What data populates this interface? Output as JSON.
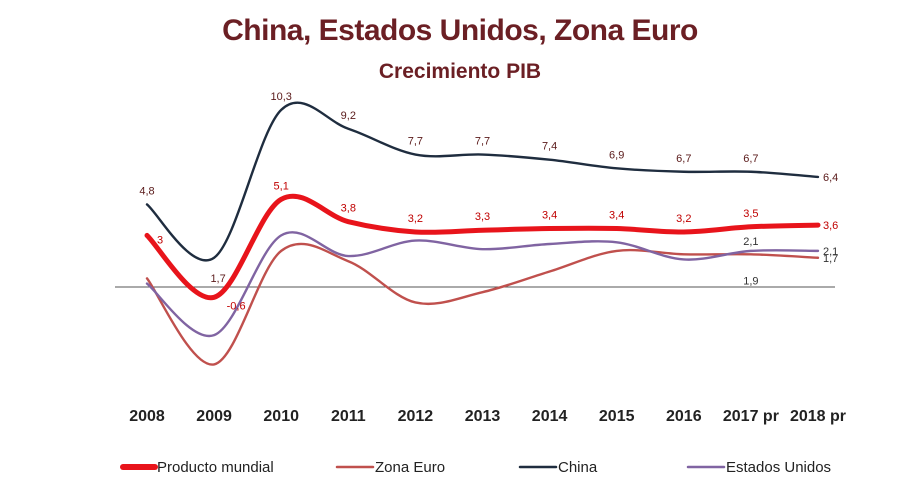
{
  "title": "China, Estados Unidos, Zona Euro",
  "subtitle": "Crecimiento PIB",
  "chart_data": {
    "type": "line",
    "title": "China, Estados Unidos, Zona Euro",
    "subtitle": "Crecimiento PIB",
    "xlabel": "",
    "ylabel": "",
    "categories": [
      "2008",
      "2009",
      "2010",
      "2011",
      "2012",
      "2013",
      "2014",
      "2015",
      "2016",
      "2017 pr",
      "2018 pr"
    ],
    "grid": false,
    "legend_position": "bottom",
    "series": [
      {
        "name": "Producto mundial",
        "color": "#e8141b",
        "values": [
          3,
          -0.6,
          5.1,
          3.8,
          3.2,
          3.3,
          3.4,
          3.4,
          3.2,
          3.5,
          3.6
        ],
        "labels": [
          "3",
          "-0,6",
          "5,1",
          "3,8",
          "3,2",
          "3,3",
          "3,4",
          "3,4",
          "3,2",
          "3,5",
          "3,6"
        ]
      },
      {
        "name": "Zona Euro",
        "color": "#c0504d",
        "values": [
          0.5,
          -4.5,
          2.1,
          1.5,
          -0.9,
          -0.3,
          0.9,
          2.1,
          1.9,
          1.9,
          1.7
        ],
        "labels": [
          "",
          "",
          "",
          "",
          "",
          "",
          "",
          "",
          "",
          "1,9",
          "1,7"
        ]
      },
      {
        "name": "China",
        "color": "#1f2d3f",
        "values": [
          4.8,
          1.7,
          10.3,
          9.2,
          7.7,
          7.7,
          7.4,
          6.9,
          6.7,
          6.7,
          6.4
        ],
        "labels": [
          "4,8",
          "1,7",
          "10,3",
          "9,2",
          "7,7",
          "7,7",
          "7,4",
          "6,9",
          "6,7",
          "6,7",
          "6,4"
        ]
      },
      {
        "name": "Estados Unidos",
        "color": "#8064a2",
        "values": [
          0.2,
          -2.8,
          3.0,
          1.8,
          2.7,
          2.2,
          2.5,
          2.6,
          1.6,
          2.1,
          2.1
        ],
        "labels": [
          "",
          "",
          "",
          "",
          "",
          "",
          "",
          "",
          "",
          "2,1",
          "2,1"
        ]
      }
    ]
  },
  "legend": [
    {
      "label": "Producto mundial",
      "color": "#e8141b",
      "weight": "thick"
    },
    {
      "label": "Zona Euro",
      "color": "#c0504d",
      "weight": "thin"
    },
    {
      "label": "China",
      "color": "#1f2d3f",
      "weight": "thin"
    },
    {
      "label": "Estados Unidos",
      "color": "#8064a2",
      "weight": "thin"
    }
  ]
}
